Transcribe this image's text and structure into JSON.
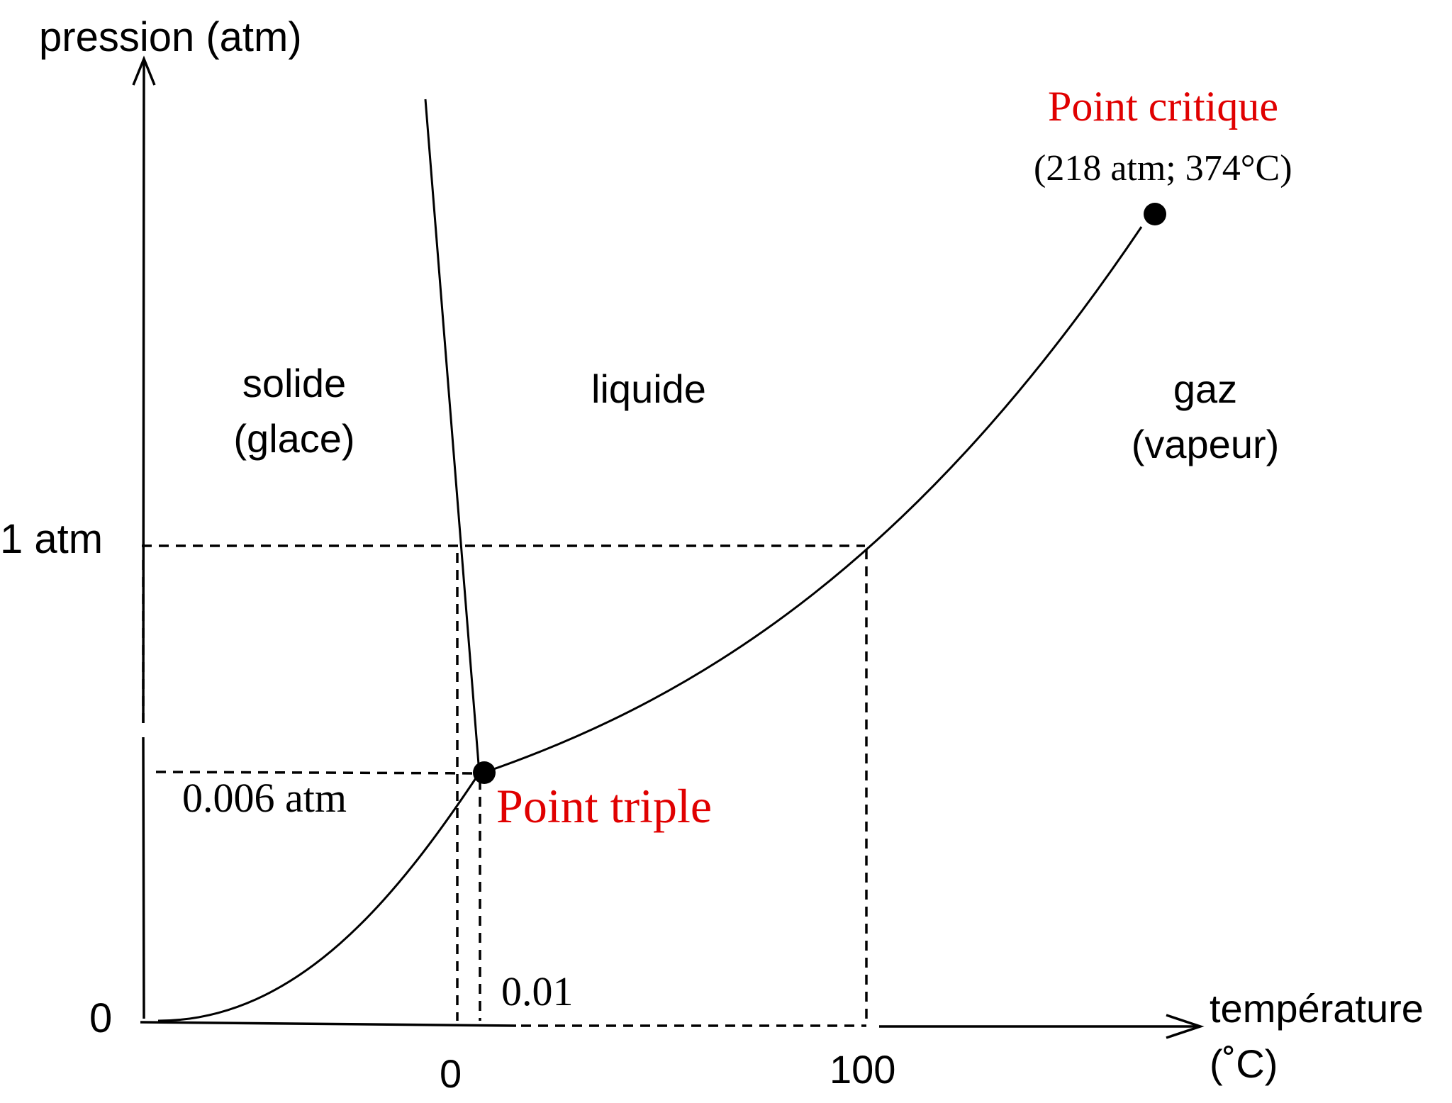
{
  "axes": {
    "y_label": "pression (atm)",
    "x_label_line1": "température",
    "x_label_line2": "(˚C)"
  },
  "ticks": {
    "y_one_atm": "1 atm",
    "y_zero": "0",
    "y_triple": "0.006 atm",
    "x_zero": "0",
    "x_hundred": "100",
    "x_triple": "0.01"
  },
  "regions": {
    "solid_line1": "solide",
    "solid_line2": "(glace)",
    "liquid": "liquide",
    "gas_line1": "gaz",
    "gas_line2": "(vapeur)"
  },
  "points": {
    "critical_label": "Point critique",
    "critical_values": "(218 atm; 374°C)",
    "triple_label": "Point triple"
  },
  "colors": {
    "highlight": "#e00000",
    "line": "#000000"
  }
}
